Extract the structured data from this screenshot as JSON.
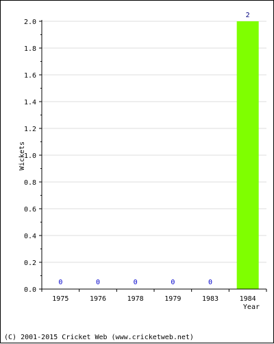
{
  "chart_data": {
    "type": "bar",
    "categories": [
      "1975",
      "1976",
      "1978",
      "1979",
      "1983",
      "1984"
    ],
    "values": [
      0,
      0,
      0,
      0,
      0,
      2
    ],
    "data_labels": [
      "0",
      "0",
      "0",
      "0",
      "0",
      "2"
    ],
    "xlabel": "Year",
    "ylabel": "Wickets",
    "ylim": [
      0,
      2.0
    ],
    "yticks": [
      "0.0",
      "0.2",
      "0.4",
      "0.6",
      "0.8",
      "1.0",
      "1.2",
      "1.4",
      "1.6",
      "1.8",
      "2.0"
    ],
    "grid": true,
    "colors": {
      "bar": "#7fff00",
      "zero_label": "#0000cc",
      "value_label": "#000080",
      "grid": "#dddddd"
    }
  },
  "footer": {
    "copyright": "(C) 2001-2015 Cricket Web (www.cricketweb.net)"
  }
}
